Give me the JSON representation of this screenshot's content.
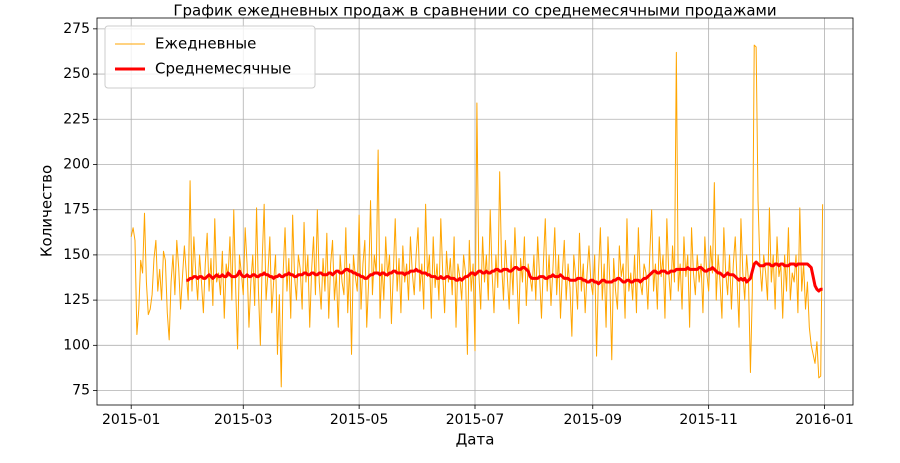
{
  "chart_data": {
    "type": "line",
    "title": "График ежедневных продаж в сравнении со среднемесячными продажами",
    "xlabel": "Дата",
    "ylabel": "Количество",
    "xlim": [
      "2014-12-14",
      "2016-01-16"
    ],
    "xticks": [
      {
        "value": "2015-01-01",
        "label": "2015-01"
      },
      {
        "value": "2015-03-01",
        "label": "2015-03"
      },
      {
        "value": "2015-05-01",
        "label": "2015-05"
      },
      {
        "value": "2015-07-01",
        "label": "2015-07"
      },
      {
        "value": "2015-09-01",
        "label": "2015-09"
      },
      {
        "value": "2015-11-01",
        "label": "2015-11"
      },
      {
        "value": "2016-01-01",
        "label": "2016-01"
      }
    ],
    "ylim": [
      67,
      281
    ],
    "yticks": [
      75,
      100,
      125,
      150,
      175,
      200,
      225,
      250,
      275
    ],
    "grid": true,
    "legend": "upper left",
    "x": [
      "2015-01-01",
      "2015-01-02",
      "2015-01-03",
      "2015-01-04",
      "2015-01-05",
      "2015-01-06",
      "2015-01-07",
      "2015-01-08",
      "2015-01-09",
      "2015-01-10",
      "2015-01-11",
      "2015-01-12",
      "2015-01-13",
      "2015-01-14",
      "2015-01-15",
      "2015-01-16",
      "2015-01-17",
      "2015-01-18",
      "2015-01-19",
      "2015-01-20",
      "2015-01-21",
      "2015-01-22",
      "2015-01-23",
      "2015-01-24",
      "2015-01-25",
      "2015-01-26",
      "2015-01-27",
      "2015-01-28",
      "2015-01-29",
      "2015-01-30",
      "2015-01-31",
      "2015-02-01",
      "2015-02-02",
      "2015-02-03",
      "2015-02-04",
      "2015-02-05",
      "2015-02-06",
      "2015-02-07",
      "2015-02-08",
      "2015-02-09",
      "2015-02-10",
      "2015-02-11",
      "2015-02-12",
      "2015-02-13",
      "2015-02-14",
      "2015-02-15",
      "2015-02-16",
      "2015-02-17",
      "2015-02-18",
      "2015-02-19",
      "2015-02-20",
      "2015-02-21",
      "2015-02-22",
      "2015-02-23",
      "2015-02-24",
      "2015-02-25",
      "2015-02-26",
      "2015-02-27",
      "2015-02-28",
      "2015-03-01",
      "2015-03-02",
      "2015-03-03",
      "2015-03-04",
      "2015-03-05",
      "2015-03-06",
      "2015-03-07",
      "2015-03-08",
      "2015-03-09",
      "2015-03-10",
      "2015-03-11",
      "2015-03-12",
      "2015-03-13",
      "2015-03-14",
      "2015-03-15",
      "2015-03-16",
      "2015-03-17",
      "2015-03-18",
      "2015-03-19",
      "2015-03-20",
      "2015-03-21",
      "2015-03-22",
      "2015-03-23",
      "2015-03-24",
      "2015-03-25",
      "2015-03-26",
      "2015-03-27",
      "2015-03-28",
      "2015-03-29",
      "2015-03-30",
      "2015-03-31",
      "2015-04-01",
      "2015-04-02",
      "2015-04-03",
      "2015-04-04",
      "2015-04-05",
      "2015-04-06",
      "2015-04-07",
      "2015-04-08",
      "2015-04-09",
      "2015-04-10",
      "2015-04-11",
      "2015-04-12",
      "2015-04-13",
      "2015-04-14",
      "2015-04-15",
      "2015-04-16",
      "2015-04-17",
      "2015-04-18",
      "2015-04-19",
      "2015-04-20",
      "2015-04-21",
      "2015-04-22",
      "2015-04-23",
      "2015-04-24",
      "2015-04-25",
      "2015-04-26",
      "2015-04-27",
      "2015-04-28",
      "2015-04-29",
      "2015-04-30",
      "2015-05-01",
      "2015-05-02",
      "2015-05-03",
      "2015-05-04",
      "2015-05-05",
      "2015-05-06",
      "2015-05-07",
      "2015-05-08",
      "2015-05-09",
      "2015-05-10",
      "2015-05-11",
      "2015-05-12",
      "2015-05-13",
      "2015-05-14",
      "2015-05-15",
      "2015-05-16",
      "2015-05-17",
      "2015-05-18",
      "2015-05-19",
      "2015-05-20",
      "2015-05-21",
      "2015-05-22",
      "2015-05-23",
      "2015-05-24",
      "2015-05-25",
      "2015-05-26",
      "2015-05-27",
      "2015-05-28",
      "2015-05-29",
      "2015-05-30",
      "2015-05-31",
      "2015-06-01",
      "2015-06-02",
      "2015-06-03",
      "2015-06-04",
      "2015-06-05",
      "2015-06-06",
      "2015-06-07",
      "2015-06-08",
      "2015-06-09",
      "2015-06-10",
      "2015-06-11",
      "2015-06-12",
      "2015-06-13",
      "2015-06-14",
      "2015-06-15",
      "2015-06-16",
      "2015-06-17",
      "2015-06-18",
      "2015-06-19",
      "2015-06-20",
      "2015-06-21",
      "2015-06-22",
      "2015-06-23",
      "2015-06-24",
      "2015-06-25",
      "2015-06-26",
      "2015-06-27",
      "2015-06-28",
      "2015-06-29",
      "2015-06-30",
      "2015-07-01",
      "2015-07-02",
      "2015-07-03",
      "2015-07-04",
      "2015-07-05",
      "2015-07-06",
      "2015-07-07",
      "2015-07-08",
      "2015-07-09",
      "2015-07-10",
      "2015-07-11",
      "2015-07-12",
      "2015-07-13",
      "2015-07-14",
      "2015-07-15",
      "2015-07-16",
      "2015-07-17",
      "2015-07-18",
      "2015-07-19",
      "2015-07-20",
      "2015-07-21",
      "2015-07-22",
      "2015-07-23",
      "2015-07-24",
      "2015-07-25",
      "2015-07-26",
      "2015-07-27",
      "2015-07-28",
      "2015-07-29",
      "2015-07-30",
      "2015-07-31",
      "2015-08-01",
      "2015-08-02",
      "2015-08-03",
      "2015-08-04",
      "2015-08-05",
      "2015-08-06",
      "2015-08-07",
      "2015-08-08",
      "2015-08-09",
      "2015-08-10",
      "2015-08-11",
      "2015-08-12",
      "2015-08-13",
      "2015-08-14",
      "2015-08-15",
      "2015-08-16",
      "2015-08-17",
      "2015-08-18",
      "2015-08-19",
      "2015-08-20",
      "2015-08-21",
      "2015-08-22",
      "2015-08-23",
      "2015-08-24",
      "2015-08-25",
      "2015-08-26",
      "2015-08-27",
      "2015-08-28",
      "2015-08-29",
      "2015-08-30",
      "2015-08-31",
      "2015-09-01",
      "2015-09-02",
      "2015-09-03",
      "2015-09-04",
      "2015-09-05",
      "2015-09-06",
      "2015-09-07",
      "2015-09-08",
      "2015-09-09",
      "2015-09-10",
      "2015-09-11",
      "2015-09-12",
      "2015-09-13",
      "2015-09-14",
      "2015-09-15",
      "2015-09-16",
      "2015-09-17",
      "2015-09-18",
      "2015-09-19",
      "2015-09-20",
      "2015-09-21",
      "2015-09-22",
      "2015-09-23",
      "2015-09-24",
      "2015-09-25",
      "2015-09-26",
      "2015-09-27",
      "2015-09-28",
      "2015-09-29",
      "2015-09-30",
      "2015-10-01",
      "2015-10-02",
      "2015-10-03",
      "2015-10-04",
      "2015-10-05",
      "2015-10-06",
      "2015-10-07",
      "2015-10-08",
      "2015-10-09",
      "2015-10-10",
      "2015-10-11",
      "2015-10-12",
      "2015-10-13",
      "2015-10-14",
      "2015-10-15",
      "2015-10-16",
      "2015-10-17",
      "2015-10-18",
      "2015-10-19",
      "2015-10-20",
      "2015-10-21",
      "2015-10-22",
      "2015-10-23",
      "2015-10-24",
      "2015-10-25",
      "2015-10-26",
      "2015-10-27",
      "2015-10-28",
      "2015-10-29",
      "2015-10-30",
      "2015-10-31",
      "2015-11-01",
      "2015-11-02",
      "2015-11-03",
      "2015-11-04",
      "2015-11-05",
      "2015-11-06",
      "2015-11-07",
      "2015-11-08",
      "2015-11-09",
      "2015-11-10",
      "2015-11-11",
      "2015-11-12",
      "2015-11-13",
      "2015-11-14",
      "2015-11-15",
      "2015-11-16",
      "2015-11-17",
      "2015-11-18",
      "2015-11-19",
      "2015-11-20",
      "2015-11-21",
      "2015-11-22",
      "2015-11-23",
      "2015-11-24",
      "2015-11-25",
      "2015-11-26",
      "2015-11-27",
      "2015-11-28",
      "2015-11-29",
      "2015-11-30",
      "2015-12-01",
      "2015-12-02",
      "2015-12-03",
      "2015-12-04",
      "2015-12-05",
      "2015-12-06",
      "2015-12-07",
      "2015-12-08",
      "2015-12-09",
      "2015-12-10",
      "2015-12-11",
      "2015-12-12",
      "2015-12-13",
      "2015-12-14",
      "2015-12-15",
      "2015-12-16",
      "2015-12-17",
      "2015-12-18",
      "2015-12-19",
      "2015-12-20",
      "2015-12-21",
      "2015-12-22",
      "2015-12-23",
      "2015-12-24",
      "2015-12-25",
      "2015-12-26",
      "2015-12-27",
      "2015-12-28",
      "2015-12-29",
      "2015-12-30",
      "2015-12-31"
    ],
    "series": [
      {
        "name": "Ежедневные",
        "color": "#ffa500",
        "width": 1,
        "values": [
          160,
          165,
          158,
          106,
          120,
          147,
          140,
          173,
          135,
          117,
          120,
          128,
          148,
          158,
          130,
          142,
          125,
          152,
          147,
          118,
          103,
          135,
          150,
          128,
          158,
          143,
          120,
          138,
          155,
          140,
          125,
          191,
          130,
          160,
          140,
          125,
          150,
          135,
          118,
          145,
          162,
          130,
          148,
          122,
          170,
          135,
          140,
          128,
          152,
          115,
          145,
          138,
          160,
          125,
          175,
          132,
          98,
          150,
          140,
          128,
          165,
          145,
          110,
          135,
          150,
          122,
          176,
          130,
          100,
          148,
          178,
          125,
          140,
          160,
          118,
          135,
          150,
          95,
          128,
          77,
          140,
          165,
          130,
          148,
          115,
          172,
          138,
          125,
          150,
          142,
          120,
          168,
          135,
          150,
          110,
          142,
          160,
          128,
          175,
          135,
          120,
          148,
          130,
          162,
          115,
          145,
          158,
          125,
          140,
          110,
          150,
          135,
          128,
          165,
          118,
          145,
          95,
          150,
          138,
          130,
          172,
          120,
          145,
          158,
          110,
          135,
          180,
          128,
          150,
          140,
          208,
          115,
          145,
          125,
          160,
          138,
          150,
          112,
          140,
          170,
          130,
          148,
          118,
          155,
          135,
          145,
          125,
          160,
          140,
          128,
          150,
          165,
          130,
          145,
          120,
          178,
          138,
          150,
          115,
          160,
          132,
          145,
          125,
          170,
          140,
          118,
          152,
          135,
          148,
          128,
          160,
          110,
          145,
          138,
          125,
          150,
          140,
          95,
          158,
          130,
          145,
          97,
          234,
          140,
          120,
          160,
          135,
          150,
          125,
          175,
          140,
          118,
          150,
          132,
          196,
          145,
          125,
          158,
          138,
          120,
          150,
          128,
          165,
          140,
          112,
          148,
          135,
          160,
          122,
          145,
          138,
          130,
          150,
          125,
          160,
          138,
          115,
          145,
          170,
          130,
          150,
          122,
          142,
          165,
          128,
          150,
          115,
          140,
          158,
          125,
          145,
          132,
          105,
          150,
          138,
          120,
          162,
          130,
          145,
          118,
          140,
          155,
          135,
          128,
          150,
          94,
          140,
          165,
          125,
          145,
          110,
          160,
          135,
          92,
          148,
          130,
          120,
          155,
          138,
          145,
          115,
          170,
          130,
          140,
          125,
          150,
          118,
          165,
          135,
          128,
          145,
          140,
          120,
          150,
          175,
          130,
          145,
          120,
          160,
          138,
          150,
          115,
          170,
          140,
          125,
          155,
          135,
          262,
          130,
          145,
          120,
          160,
          138,
          150,
          110,
          165,
          140,
          128,
          150,
          135,
          145,
          118,
          160,
          140,
          130,
          155,
          140,
          190,
          125,
          150,
          135,
          115,
          165,
          140,
          128,
          150,
          120,
          145,
          160,
          135,
          110,
          170,
          140,
          125,
          150,
          135,
          85,
          130,
          266,
          265,
          180,
          145,
          130,
          150,
          140,
          125,
          176,
          135,
          150,
          120,
          160,
          138,
          145,
          115,
          150,
          130,
          165,
          125,
          140,
          135,
          150,
          118,
          176,
          130,
          145,
          120,
          135,
          110,
          100,
          95,
          90,
          102,
          82,
          83,
          178
        ]
      },
      {
        "name": "Среднемесячные",
        "color": "#ff0000",
        "width": 3,
        "values": [
          null,
          null,
          null,
          null,
          null,
          null,
          null,
          null,
          null,
          null,
          null,
          null,
          null,
          null,
          null,
          null,
          null,
          null,
          null,
          null,
          null,
          null,
          null,
          null,
          null,
          null,
          null,
          null,
          null,
          136,
          136,
          137,
          137,
          138,
          138,
          137,
          138,
          138,
          137,
          137,
          138,
          139,
          138,
          137,
          138,
          139,
          138,
          138,
          139,
          138,
          138,
          140,
          139,
          138,
          138,
          138,
          139,
          141,
          139,
          138,
          138,
          139,
          138,
          138,
          139,
          139,
          138,
          138,
          139,
          139,
          140,
          139,
          139,
          138,
          138,
          137,
          138,
          138,
          139,
          138,
          138,
          139,
          139,
          140,
          139,
          139,
          138,
          138,
          139,
          139,
          139,
          140,
          140,
          139,
          139,
          140,
          140,
          139,
          139,
          140,
          140,
          139,
          139,
          139,
          140,
          140,
          139,
          140,
          141,
          141,
          140,
          140,
          141,
          142,
          142,
          141,
          141,
          140,
          140,
          139,
          139,
          138,
          138,
          137,
          137,
          138,
          139,
          139,
          140,
          140,
          140,
          139,
          140,
          140,
          139,
          139,
          140,
          140,
          141,
          141,
          140,
          140,
          140,
          140,
          139,
          140,
          140,
          141,
          141,
          141,
          142,
          141,
          141,
          140,
          140,
          140,
          139,
          139,
          138,
          138,
          138,
          137,
          137,
          138,
          137,
          137,
          138,
          138,
          137,
          137,
          137,
          136,
          136,
          137,
          136,
          137,
          138,
          138,
          139,
          140,
          140,
          139,
          140,
          141,
          141,
          140,
          140,
          141,
          140,
          140,
          141,
          141,
          142,
          142,
          141,
          141,
          142,
          142,
          142,
          141,
          141,
          142,
          143,
          143,
          142,
          142,
          143,
          143,
          142,
          141,
          138,
          137,
          137,
          137,
          137,
          138,
          138,
          138,
          137,
          137,
          138,
          138,
          139,
          138,
          138,
          138,
          139,
          138,
          137,
          137,
          137,
          136,
          136,
          136,
          136,
          137,
          137,
          137,
          136,
          136,
          135,
          135,
          136,
          136,
          135,
          135,
          134,
          135,
          136,
          136,
          135,
          135,
          135,
          135,
          136,
          136,
          137,
          137,
          136,
          135,
          135,
          136,
          136,
          135,
          135,
          136,
          136,
          136,
          135,
          136,
          137,
          137,
          138,
          139,
          140,
          141,
          141,
          140,
          140,
          141,
          141,
          141,
          140,
          140,
          141,
          141,
          141,
          142,
          142,
          142,
          142,
          142,
          142,
          143,
          142,
          142,
          142,
          142,
          142,
          143,
          143,
          142,
          141,
          141,
          142,
          142,
          143,
          142,
          141,
          140,
          140,
          139,
          138,
          139,
          140,
          139,
          139,
          139,
          138,
          137,
          136,
          137,
          136,
          137,
          135,
          136,
          137,
          141,
          145,
          146,
          145,
          144,
          144,
          144,
          145,
          145,
          145,
          144,
          144,
          145,
          145,
          144,
          145,
          145,
          144,
          144,
          144,
          145,
          145,
          145,
          144,
          145,
          145,
          145,
          145,
          145,
          145,
          144,
          143,
          138,
          133,
          131,
          130,
          131,
          131
        ]
      }
    ]
  }
}
